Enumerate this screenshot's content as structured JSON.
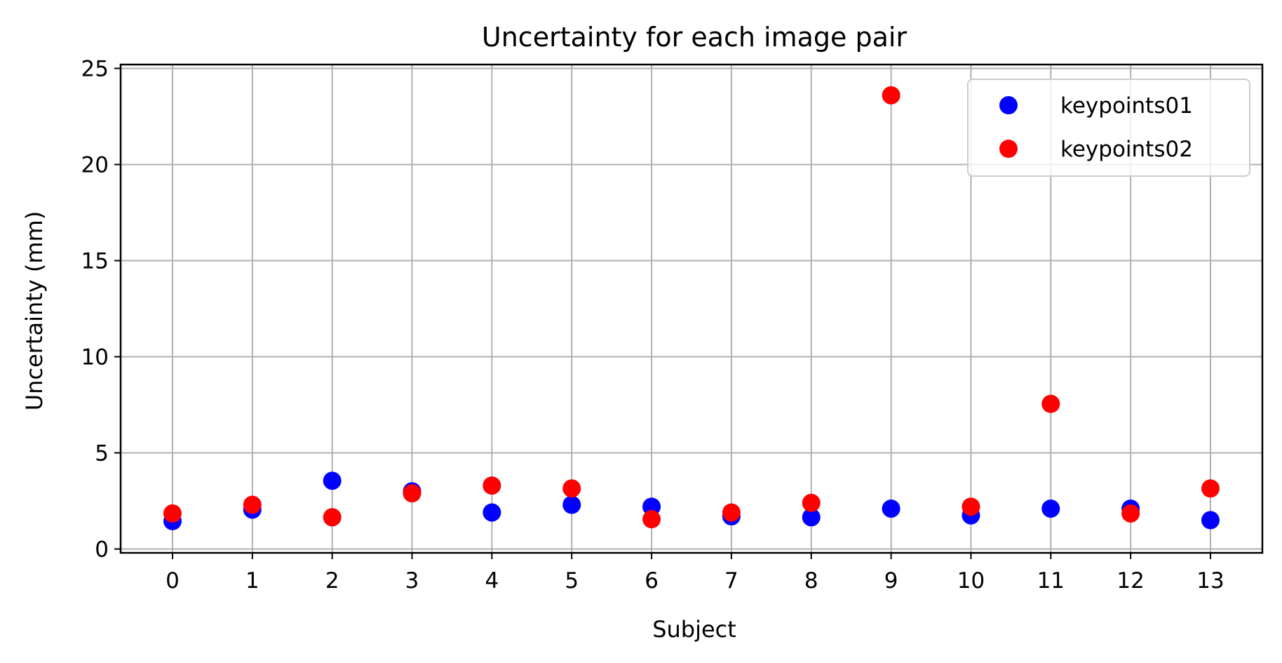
{
  "chart_data": {
    "type": "scatter",
    "title": "Uncertainty for each image pair",
    "xlabel": "Subject",
    "ylabel": "Uncertainty (mm)",
    "xlim": [
      -0.65,
      13.65
    ],
    "ylim": [
      -0.2,
      25.2
    ],
    "x_ticks": [
      0,
      1,
      2,
      3,
      4,
      5,
      6,
      7,
      8,
      9,
      10,
      11,
      12,
      13
    ],
    "y_ticks": [
      0,
      5,
      10,
      15,
      20,
      25
    ],
    "grid": true,
    "legend_position": "top-right",
    "series": [
      {
        "name": "keypoints01",
        "color": "#0000ff",
        "x": [
          0,
          1,
          2,
          3,
          4,
          5,
          6,
          7,
          8,
          9,
          10,
          11,
          12,
          13
        ],
        "y": [
          1.45,
          2.05,
          3.55,
          3.0,
          1.9,
          2.3,
          2.2,
          1.7,
          1.65,
          2.1,
          1.75,
          2.1,
          2.1,
          1.5
        ]
      },
      {
        "name": "keypoints02",
        "color": "#ff0000",
        "x": [
          0,
          1,
          2,
          3,
          4,
          5,
          6,
          7,
          8,
          9,
          10,
          11,
          12,
          13
        ],
        "y": [
          1.85,
          2.3,
          1.65,
          2.9,
          3.3,
          3.15,
          1.55,
          1.9,
          2.4,
          23.6,
          2.2,
          7.55,
          1.85,
          3.15
        ]
      }
    ]
  }
}
